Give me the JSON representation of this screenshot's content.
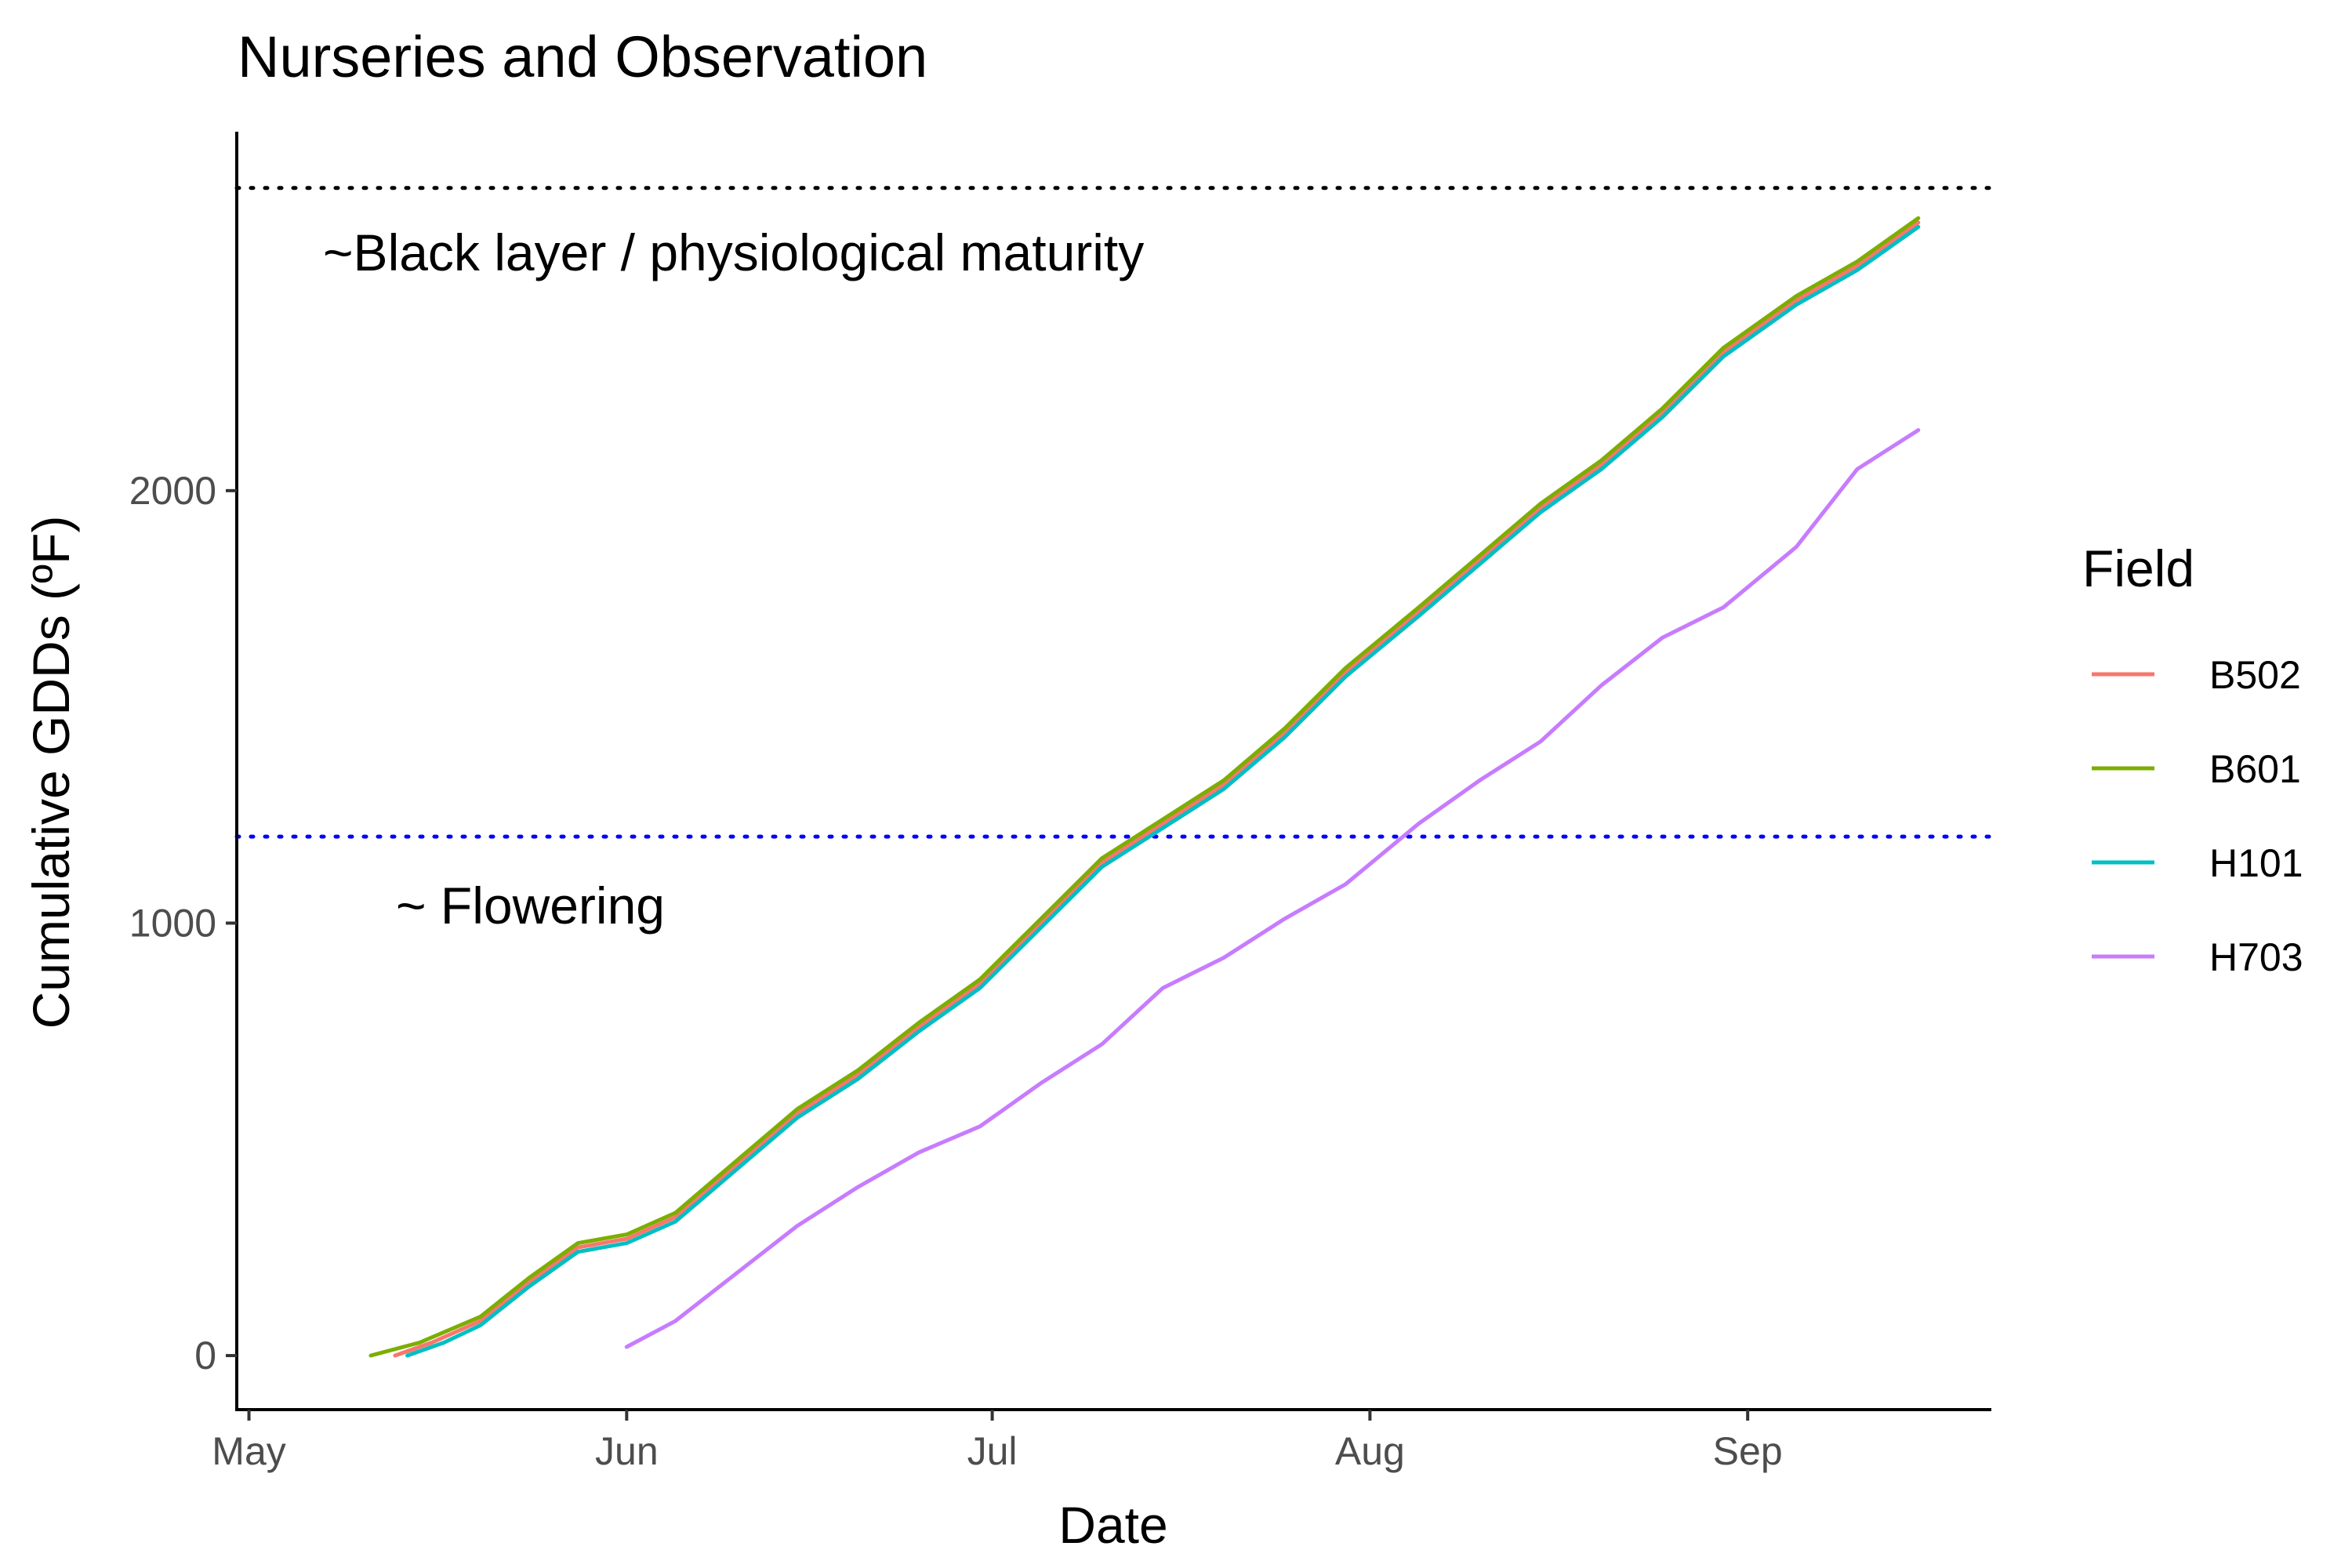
{
  "chart_data": {
    "type": "line",
    "title": "Nurseries and Observation",
    "xlabel": "Date",
    "ylabel": "Cumulative GDDs (ºF)",
    "x_type": "date",
    "xlim": [
      "2000-04-30",
      "2000-09-21"
    ],
    "ylim": [
      -125,
      2830
    ],
    "x_ticks": [
      {
        "date": "2000-05-01",
        "label": "May"
      },
      {
        "date": "2000-06-01",
        "label": "Jun"
      },
      {
        "date": "2000-07-01",
        "label": "Jul"
      },
      {
        "date": "2000-08-01",
        "label": "Aug"
      },
      {
        "date": "2000-09-01",
        "label": "Sep"
      }
    ],
    "y_ticks": [
      {
        "value": 0,
        "label": "0"
      },
      {
        "value": 1000,
        "label": "1000"
      },
      {
        "value": 2000,
        "label": "2000"
      }
    ],
    "grid": false,
    "legend": {
      "title": "Field",
      "position": "right"
    },
    "reference_lines": [
      {
        "y": 2700,
        "style": "dotted",
        "color": "#000000",
        "label": "~Black layer / physiological maturity"
      },
      {
        "y": 1200,
        "style": "dotted",
        "color": "#0000ff",
        "label": "~ Flowering"
      }
    ],
    "series": [
      {
        "name": "B502",
        "color": "#F8766D",
        "points": [
          [
            "2000-05-13",
            0
          ],
          [
            "2000-05-16",
            30
          ],
          [
            "2000-05-20",
            80
          ],
          [
            "2000-05-24",
            170
          ],
          [
            "2000-05-28",
            250
          ],
          [
            "2000-06-01",
            270
          ],
          [
            "2000-06-05",
            320
          ],
          [
            "2000-06-10",
            440
          ],
          [
            "2000-06-15",
            560
          ],
          [
            "2000-06-20",
            650
          ],
          [
            "2000-06-25",
            760
          ],
          [
            "2000-06-30",
            860
          ],
          [
            "2000-07-05",
            1000
          ],
          [
            "2000-07-10",
            1140
          ],
          [
            "2000-07-15",
            1230
          ],
          [
            "2000-07-20",
            1320
          ],
          [
            "2000-07-25",
            1440
          ],
          [
            "2000-07-30",
            1580
          ],
          [
            "2000-08-05",
            1720
          ],
          [
            "2000-08-10",
            1840
          ],
          [
            "2000-08-15",
            1960
          ],
          [
            "2000-08-20",
            2060
          ],
          [
            "2000-08-25",
            2180
          ],
          [
            "2000-08-30",
            2320
          ],
          [
            "2000-09-05",
            2440
          ],
          [
            "2000-09-10",
            2520
          ],
          [
            "2000-09-15",
            2620
          ]
        ]
      },
      {
        "name": "B601",
        "color": "#7CAE00",
        "points": [
          [
            "2000-05-11",
            0
          ],
          [
            "2000-05-15",
            30
          ],
          [
            "2000-05-20",
            90
          ],
          [
            "2000-05-24",
            180
          ],
          [
            "2000-05-28",
            260
          ],
          [
            "2000-06-01",
            280
          ],
          [
            "2000-06-05",
            330
          ],
          [
            "2000-06-10",
            450
          ],
          [
            "2000-06-15",
            570
          ],
          [
            "2000-06-20",
            660
          ],
          [
            "2000-06-25",
            770
          ],
          [
            "2000-06-30",
            870
          ],
          [
            "2000-07-05",
            1010
          ],
          [
            "2000-07-10",
            1150
          ],
          [
            "2000-07-15",
            1240
          ],
          [
            "2000-07-20",
            1330
          ],
          [
            "2000-07-25",
            1450
          ],
          [
            "2000-07-30",
            1590
          ],
          [
            "2000-08-05",
            1730
          ],
          [
            "2000-08-10",
            1850
          ],
          [
            "2000-08-15",
            1970
          ],
          [
            "2000-08-20",
            2070
          ],
          [
            "2000-08-25",
            2190
          ],
          [
            "2000-08-30",
            2330
          ],
          [
            "2000-09-05",
            2450
          ],
          [
            "2000-09-10",
            2530
          ],
          [
            "2000-09-15",
            2630
          ]
        ]
      },
      {
        "name": "H101",
        "color": "#00BFC4",
        "points": [
          [
            "2000-05-14",
            0
          ],
          [
            "2000-05-17",
            30
          ],
          [
            "2000-05-20",
            70
          ],
          [
            "2000-05-24",
            160
          ],
          [
            "2000-05-28",
            240
          ],
          [
            "2000-06-01",
            260
          ],
          [
            "2000-06-05",
            310
          ],
          [
            "2000-06-10",
            430
          ],
          [
            "2000-06-15",
            550
          ],
          [
            "2000-06-20",
            640
          ],
          [
            "2000-06-25",
            750
          ],
          [
            "2000-06-30",
            850
          ],
          [
            "2000-07-05",
            990
          ],
          [
            "2000-07-10",
            1130
          ],
          [
            "2000-07-15",
            1220
          ],
          [
            "2000-07-20",
            1310
          ],
          [
            "2000-07-25",
            1430
          ],
          [
            "2000-07-30",
            1570
          ],
          [
            "2000-08-05",
            1710
          ],
          [
            "2000-08-10",
            1830
          ],
          [
            "2000-08-15",
            1950
          ],
          [
            "2000-08-20",
            2050
          ],
          [
            "2000-08-25",
            2170
          ],
          [
            "2000-08-30",
            2310
          ],
          [
            "2000-09-05",
            2430
          ],
          [
            "2000-09-10",
            2510
          ],
          [
            "2000-09-15",
            2610
          ]
        ]
      },
      {
        "name": "H703",
        "color": "#C77CFF",
        "points": [
          [
            "2000-06-01",
            20
          ],
          [
            "2000-06-05",
            80
          ],
          [
            "2000-06-10",
            190
          ],
          [
            "2000-06-15",
            300
          ],
          [
            "2000-06-20",
            390
          ],
          [
            "2000-06-25",
            470
          ],
          [
            "2000-06-30",
            530
          ],
          [
            "2000-07-05",
            630
          ],
          [
            "2000-07-10",
            720
          ],
          [
            "2000-07-15",
            850
          ],
          [
            "2000-07-20",
            920
          ],
          [
            "2000-07-25",
            1010
          ],
          [
            "2000-07-30",
            1090
          ],
          [
            "2000-08-05",
            1230
          ],
          [
            "2000-08-10",
            1330
          ],
          [
            "2000-08-15",
            1420
          ],
          [
            "2000-08-20",
            1550
          ],
          [
            "2000-08-25",
            1660
          ],
          [
            "2000-08-30",
            1730
          ],
          [
            "2000-09-05",
            1870
          ],
          [
            "2000-09-10",
            2050
          ],
          [
            "2000-09-15",
            2140
          ]
        ]
      }
    ]
  }
}
